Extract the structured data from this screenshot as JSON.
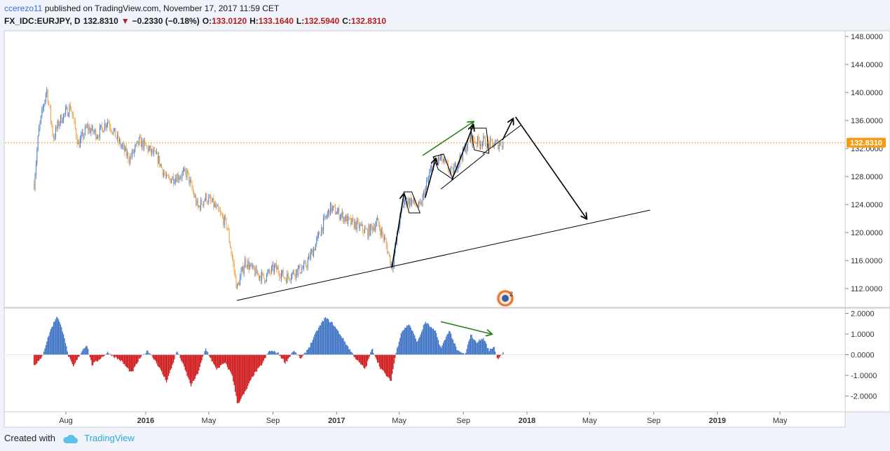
{
  "header": {
    "author": "ccerezo11",
    "published": "published on TradingView.com, November 17, 2017 11:59 CET",
    "symbol": "FX_IDC:EURJPY, D",
    "last": "132.8310",
    "change": "−0.2330 (−0.18%)",
    "o_label": "O:",
    "o_value": "133.0120",
    "h_label": "H:",
    "h_value": "133.1640",
    "l_label": "L:",
    "l_value": "132.5940",
    "c_label": "C:",
    "c_value": "132.8310"
  },
  "footer": {
    "created": "Created with",
    "brand": "TradingView"
  },
  "colors": {
    "up": "#4a7fd1",
    "down": "#f0a040",
    "hist_pos": "#3f74c4",
    "hist_neg": "#d0191c",
    "price_line": "#f59c13",
    "price_badge": "#f59c13",
    "arrow_green": "#2e7d20",
    "trend": "#000000"
  },
  "chart_data": [
    {
      "type": "candlestick",
      "symbol": "EURJPY",
      "timeframe": "D",
      "ylim": [
        109.5,
        149.0
      ],
      "y_ticks": [
        "148.0000",
        "144.0000",
        "140.0000",
        "136.0000",
        "132.0000",
        "128.0000",
        "124.0000",
        "120.0000",
        "116.0000",
        "112.0000"
      ],
      "last_price": "132.8310",
      "x_tick_labels": [
        "Aug",
        "2016",
        "May",
        "Sep",
        "2017",
        "May",
        "Sep",
        "2018",
        "May",
        "Sep",
        "2019",
        "May"
      ],
      "price_path": [
        [
          "2015-06-01",
          127.0
        ],
        [
          "2015-06-10",
          134.5
        ],
        [
          "2015-06-25",
          140.5
        ],
        [
          "2015-07-08",
          133.5
        ],
        [
          "2015-07-20",
          136.0
        ],
        [
          "2015-08-10",
          138.0
        ],
        [
          "2015-08-25",
          132.5
        ],
        [
          "2015-09-10",
          135.0
        ],
        [
          "2015-10-01",
          134.0
        ],
        [
          "2015-10-20",
          136.0
        ],
        [
          "2015-11-10",
          133.0
        ],
        [
          "2015-12-01",
          130.5
        ],
        [
          "2015-12-20",
          133.0
        ],
        [
          "2016-01-05",
          132.0
        ],
        [
          "2016-01-25",
          130.5
        ],
        [
          "2016-02-10",
          127.5
        ],
        [
          "2016-03-01",
          128.0
        ],
        [
          "2016-03-20",
          128.5
        ],
        [
          "2016-04-10",
          123.5
        ],
        [
          "2016-04-25",
          125.0
        ],
        [
          "2016-05-10",
          124.0
        ],
        [
          "2016-06-05",
          121.0
        ],
        [
          "2016-06-24",
          112.0
        ],
        [
          "2016-07-10",
          116.0
        ],
        [
          "2016-07-25",
          114.5
        ],
        [
          "2016-08-15",
          113.5
        ],
        [
          "2016-09-05",
          115.0
        ],
        [
          "2016-09-25",
          113.5
        ],
        [
          "2016-10-15",
          114.5
        ],
        [
          "2016-11-01",
          115.0
        ],
        [
          "2016-11-20",
          118.0
        ],
        [
          "2016-12-05",
          121.0
        ],
        [
          "2016-12-20",
          123.5
        ],
        [
          "2017-01-10",
          122.5
        ],
        [
          "2017-01-25",
          121.5
        ],
        [
          "2017-02-10",
          121.0
        ],
        [
          "2017-03-01",
          120.0
        ],
        [
          "2017-03-20",
          121.5
        ],
        [
          "2017-04-05",
          118.5
        ],
        [
          "2017-04-17",
          115.0
        ],
        [
          "2017-05-01",
          121.5
        ],
        [
          "2017-05-10",
          124.5
        ],
        [
          "2017-05-25",
          124.5
        ],
        [
          "2017-06-10",
          123.5
        ],
        [
          "2017-06-25",
          127.5
        ],
        [
          "2017-07-05",
          130.0
        ],
        [
          "2017-07-20",
          130.5
        ],
        [
          "2017-08-10",
          128.5
        ],
        [
          "2017-08-25",
          130.5
        ],
        [
          "2017-09-15",
          133.5
        ],
        [
          "2017-09-25",
          133.0
        ],
        [
          "2017-10-10",
          133.0
        ],
        [
          "2017-10-25",
          132.5
        ],
        [
          "2017-11-17",
          132.83
        ]
      ],
      "drawings": {
        "support_trendline": [
          [
            "2016-06-24",
            110.3
          ],
          [
            "2018-08-25",
            123.2
          ]
        ],
        "wedge_upper": [
          [
            "2017-10-08",
            131.2
          ],
          [
            "2017-12-20",
            135.3
          ]
        ],
        "wedge_lower": [
          [
            "2017-07-20",
            126.2
          ],
          [
            "2017-10-12",
            131.2
          ]
        ],
        "green_arrow_price": [
          [
            "2017-06-15",
            131.0
          ],
          [
            "2017-09-20",
            135.8
          ]
        ],
        "black_arrows": [
          [
            [
              "2017-04-17",
              115.0
            ],
            [
              "2017-05-10",
              125.5
            ]
          ],
          [
            [
              "2017-06-20",
              125.0
            ],
            [
              "2017-07-10",
              130.5
            ]
          ],
          [
            [
              "2017-08-10",
              127.5
            ],
            [
              "2017-09-20",
              135.3
            ]
          ],
          [
            [
              "2017-11-15",
              133.2
            ],
            [
              "2017-12-05",
              136.2
            ]
          ],
          [
            [
              "2017-12-10",
              136.5
            ],
            [
              "2018-04-25",
              122.0
            ]
          ]
        ]
      }
    },
    {
      "type": "histogram",
      "name": "oscillator",
      "ylim": [
        -2.6,
        2.05
      ],
      "y_ticks": [
        "2.0000",
        "1.0000",
        "0.0000",
        "-1.0000",
        "-2.0000"
      ],
      "value_path": [
        [
          "2015-06-01",
          -0.5
        ],
        [
          "2015-06-15",
          -0.2
        ],
        [
          "2015-07-01",
          1.1
        ],
        [
          "2015-07-15",
          1.9
        ],
        [
          "2015-07-28",
          1.0
        ],
        [
          "2015-08-05",
          0.0
        ],
        [
          "2015-08-15",
          -0.6
        ],
        [
          "2015-09-01",
          0.2
        ],
        [
          "2015-09-10",
          0.5
        ],
        [
          "2015-09-20",
          -0.5
        ],
        [
          "2015-10-05",
          -0.2
        ],
        [
          "2015-10-20",
          0.1
        ],
        [
          "2015-11-15",
          -0.3
        ],
        [
          "2015-12-05",
          -0.9
        ],
        [
          "2015-12-20",
          -0.2
        ],
        [
          "2016-01-05",
          0.2
        ],
        [
          "2016-01-20",
          -0.3
        ],
        [
          "2016-02-10",
          -1.3
        ],
        [
          "2016-02-20",
          -0.6
        ],
        [
          "2016-03-01",
          0.2
        ],
        [
          "2016-03-10",
          -0.3
        ],
        [
          "2016-03-28",
          -1.5
        ],
        [
          "2016-04-10",
          -0.9
        ],
        [
          "2016-04-25",
          0.3
        ],
        [
          "2016-05-05",
          -0.2
        ],
        [
          "2016-05-15",
          -0.7
        ],
        [
          "2016-06-01",
          -0.4
        ],
        [
          "2016-06-15",
          -1.0
        ],
        [
          "2016-06-25",
          -2.4
        ],
        [
          "2016-07-10",
          -1.8
        ],
        [
          "2016-07-25",
          -1.0
        ],
        [
          "2016-08-10",
          -0.5
        ],
        [
          "2016-08-25",
          0.2
        ],
        [
          "2016-09-10",
          0.1
        ],
        [
          "2016-09-25",
          -0.4
        ],
        [
          "2016-10-10",
          0.2
        ],
        [
          "2016-10-25",
          -0.2
        ],
        [
          "2016-11-10",
          0.4
        ],
        [
          "2016-11-25",
          1.2
        ],
        [
          "2016-12-10",
          1.8
        ],
        [
          "2016-12-25",
          1.5
        ],
        [
          "2017-01-10",
          0.9
        ],
        [
          "2017-01-25",
          0.3
        ],
        [
          "2017-02-10",
          -0.3
        ],
        [
          "2017-02-25",
          -0.7
        ],
        [
          "2017-03-10",
          0.3
        ],
        [
          "2017-03-25",
          -0.6
        ],
        [
          "2017-04-15",
          -1.3
        ],
        [
          "2017-04-25",
          0.1
        ],
        [
          "2017-05-05",
          1.1
        ],
        [
          "2017-05-20",
          1.5
        ],
        [
          "2017-06-05",
          0.6
        ],
        [
          "2017-06-20",
          1.6
        ],
        [
          "2017-07-10",
          1.1
        ],
        [
          "2017-07-20",
          0.3
        ],
        [
          "2017-08-05",
          1.2
        ],
        [
          "2017-08-20",
          0.2
        ],
        [
          "2017-09-05",
          0.0
        ],
        [
          "2017-09-15",
          1.0
        ],
        [
          "2017-09-25",
          0.6
        ],
        [
          "2017-10-10",
          0.8
        ],
        [
          "2017-10-20",
          0.2
        ],
        [
          "2017-10-30",
          0.4
        ],
        [
          "2017-11-05",
          -0.2
        ],
        [
          "2017-11-17",
          0.1
        ]
      ],
      "drawings": {
        "green_arrow": [
          [
            "2017-07-20",
            1.6
          ],
          [
            "2017-10-25",
            1.0
          ]
        ]
      }
    }
  ]
}
